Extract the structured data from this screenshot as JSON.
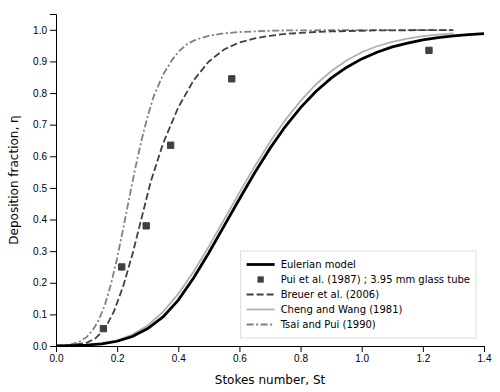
{
  "chart_data": {
    "type": "line",
    "xlabel": "Stokes number, St",
    "ylabel": "Deposition fraction, η",
    "xlim": [
      0,
      1.4
    ],
    "ylim": [
      0,
      1.05
    ],
    "xticks": [
      {
        "value": 0,
        "label": "0.0"
      },
      0.2,
      0.4,
      0.6,
      0.8,
      {
        "value": 1.0,
        "label": "1.0"
      },
      1.2,
      1.4
    ],
    "yticks": [
      {
        "value": 0,
        "label": "0.0"
      },
      0.1,
      0.2,
      0.3,
      0.4,
      0.5,
      0.6,
      0.7,
      0.8,
      0.9,
      {
        "value": 1.0,
        "label": "1.0"
      }
    ],
    "grid": false,
    "legend": "lower right",
    "series": [
      {
        "name": "Eulerian model",
        "color": "#000000",
        "line_style": "solid",
        "x": [
          0.0,
          0.05,
          0.1,
          0.15,
          0.2,
          0.25,
          0.3,
          0.35,
          0.4,
          0.45,
          0.5,
          0.55,
          0.6,
          0.65,
          0.7,
          0.75,
          0.8,
          0.85,
          0.9,
          0.95,
          1.0,
          1.05,
          1.1,
          1.15,
          1.2,
          1.25,
          1.3,
          1.35,
          1.4
        ],
        "values": [
          0.0,
          0.001,
          0.003,
          0.007,
          0.015,
          0.03,
          0.055,
          0.092,
          0.145,
          0.215,
          0.295,
          0.38,
          0.465,
          0.548,
          0.625,
          0.694,
          0.754,
          0.805,
          0.847,
          0.881,
          0.908,
          0.929,
          0.946,
          0.958,
          0.968,
          0.975,
          0.981,
          0.985,
          0.988
        ]
      },
      {
        "name": "Pui et al. (1987) ; 3.95 mm glass tube",
        "color": "#404040",
        "type": "scatter",
        "marker": "square",
        "x": [
          0.155,
          0.215,
          0.295,
          0.375,
          0.575,
          1.22
        ],
        "values": [
          0.055,
          0.25,
          0.38,
          0.635,
          0.845,
          0.935
        ]
      },
      {
        "name": "Breuer et al. (2006)",
        "color": "#404040",
        "line_style": "dashed",
        "x": [
          0.0,
          0.05,
          0.1,
          0.13,
          0.16,
          0.19,
          0.22,
          0.25,
          0.28,
          0.31,
          0.35,
          0.4,
          0.45,
          0.5,
          0.55,
          0.6,
          0.65,
          0.7,
          0.75,
          0.8,
          0.85,
          0.9,
          0.95,
          1.0,
          1.05,
          1.1,
          1.2,
          1.3
        ],
        "values": [
          0.0,
          0.003,
          0.01,
          0.025,
          0.055,
          0.11,
          0.19,
          0.29,
          0.405,
          0.52,
          0.64,
          0.755,
          0.84,
          0.9,
          0.938,
          0.96,
          0.973,
          0.981,
          0.987,
          0.99,
          0.993,
          0.995,
          0.996,
          0.997,
          0.998,
          0.998,
          0.999,
          0.999
        ]
      },
      {
        "name": "Cheng and Wang (1981)",
        "color": "#b0b0b0",
        "line_style": "solid",
        "x": [
          0.0,
          0.05,
          0.1,
          0.15,
          0.2,
          0.25,
          0.3,
          0.35,
          0.4,
          0.45,
          0.5,
          0.55,
          0.6,
          0.65,
          0.7,
          0.75,
          0.8,
          0.85,
          0.9,
          0.95,
          1.0,
          1.05,
          1.1,
          1.15,
          1.2,
          1.25,
          1.3
        ],
        "values": [
          0.0,
          0.001,
          0.003,
          0.008,
          0.018,
          0.036,
          0.065,
          0.108,
          0.165,
          0.235,
          0.315,
          0.4,
          0.485,
          0.568,
          0.645,
          0.715,
          0.775,
          0.827,
          0.869,
          0.903,
          0.929,
          0.948,
          0.962,
          0.972,
          0.98,
          0.985,
          0.989
        ]
      },
      {
        "name": "Tsai and Pui (1990)",
        "color": "#808080",
        "line_style": "dashdot",
        "x": [
          0.0,
          0.05,
          0.08,
          0.1,
          0.12,
          0.14,
          0.16,
          0.18,
          0.2,
          0.22,
          0.24,
          0.26,
          0.28,
          0.3,
          0.32,
          0.35,
          0.38,
          0.4,
          0.43,
          0.46,
          0.5,
          0.55,
          0.6,
          0.65,
          0.7,
          0.75,
          0.8,
          0.9,
          1.0,
          1.1,
          1.2,
          1.3
        ],
        "values": [
          0.0,
          0.005,
          0.015,
          0.028,
          0.05,
          0.082,
          0.13,
          0.196,
          0.278,
          0.372,
          0.47,
          0.565,
          0.652,
          0.727,
          0.791,
          0.858,
          0.905,
          0.93,
          0.956,
          0.97,
          0.981,
          0.989,
          0.993,
          0.995,
          0.997,
          0.998,
          0.998,
          0.999,
          0.999,
          0.999,
          0.999,
          0.999
        ]
      }
    ]
  }
}
